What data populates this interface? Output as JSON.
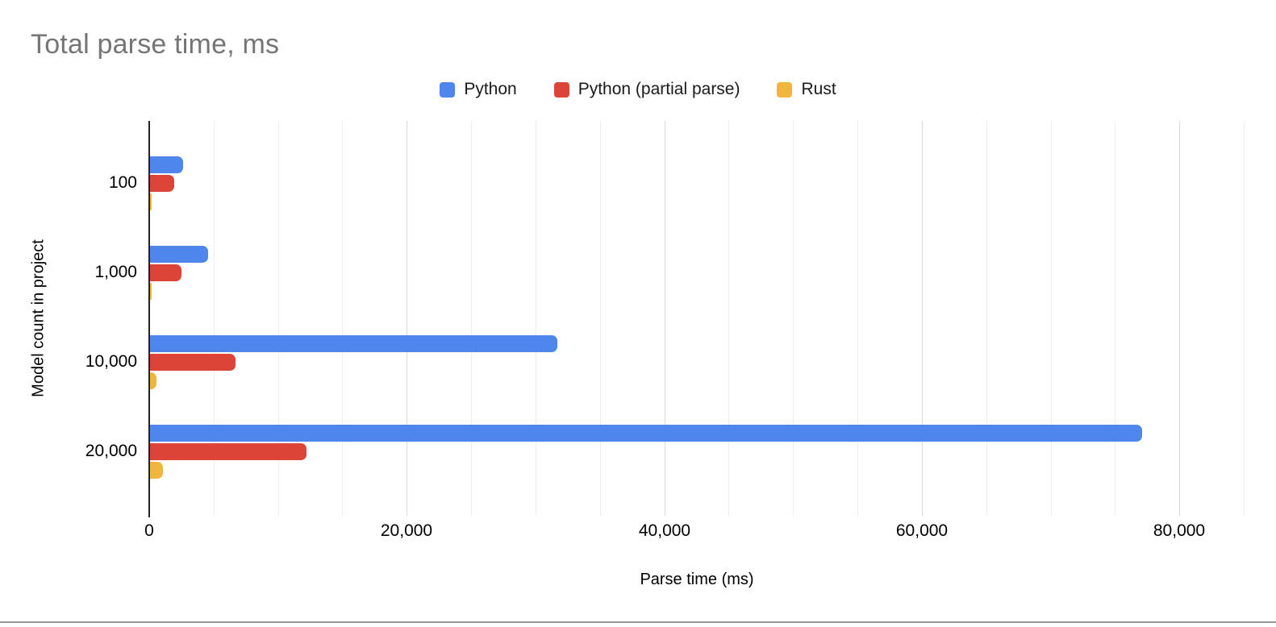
{
  "chart_data": {
    "type": "bar",
    "orientation": "horizontal",
    "title": "Total parse time, ms",
    "xlabel": "Parse time (ms)",
    "ylabel": "Model count in project",
    "categories": [
      "100",
      "1,000",
      "10,000",
      "20,000"
    ],
    "series": [
      {
        "name": "Python",
        "color": "#4e86ec",
        "values": [
          2600,
          4600,
          31700,
          77100
        ]
      },
      {
        "name": "Python (partial parse)",
        "color": "#db4437",
        "values": [
          1950,
          2500,
          6700,
          12200
        ]
      },
      {
        "name": "Rust",
        "color": "#f0b53c",
        "values": [
          100,
          130,
          560,
          1060
        ]
      }
    ],
    "x_ticks": [
      {
        "value": 0,
        "label": "0"
      },
      {
        "value": 20000,
        "label": "20,000"
      },
      {
        "value": 40000,
        "label": "40,000"
      },
      {
        "value": 60000,
        "label": "60,000"
      },
      {
        "value": 80000,
        "label": "80,000"
      }
    ],
    "xlim": [
      0,
      85000
    ],
    "minor_grid_step": 5000,
    "major_grid_step": 20000,
    "grid": true,
    "legend_position": "top"
  },
  "style": {
    "title_color": "#757575",
    "text_color": "#000000",
    "grid_minor_color": "#ececec",
    "grid_major_color": "#d9d9d9",
    "axis_line_color": "#212121",
    "bottom_rule_color": "#999999"
  }
}
